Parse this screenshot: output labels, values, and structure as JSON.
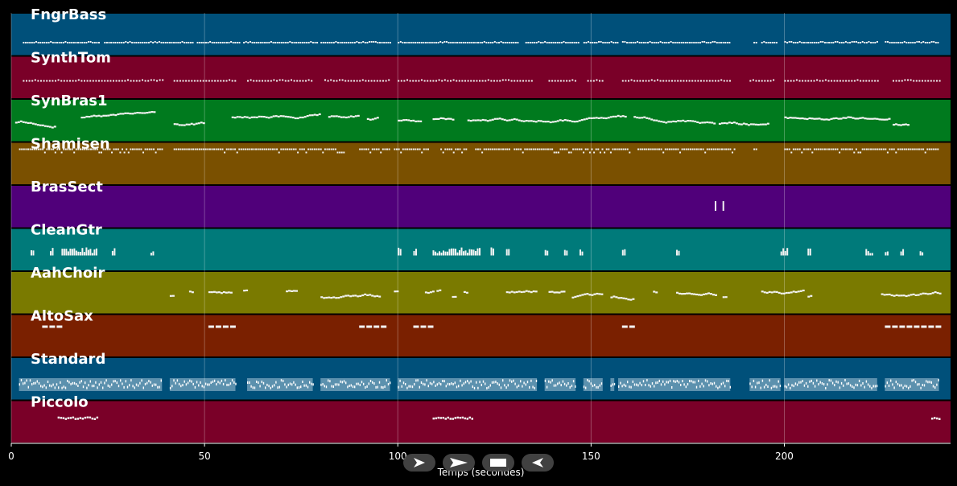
{
  "chart_data": {
    "type": "timeline",
    "xlabel": "Temps (secondes)",
    "xlim": [
      0,
      243
    ],
    "x_ticks": [
      0,
      50,
      100,
      150,
      200
    ],
    "grid": true,
    "tracks": [
      {
        "name": "FngrBass",
        "color": "#00507a",
        "pattern": "dense_line",
        "activity": [
          [
            3,
            23
          ],
          [
            24,
            47
          ],
          [
            48,
            59
          ],
          [
            60,
            79
          ],
          [
            80,
            98
          ],
          [
            100,
            131
          ],
          [
            133,
            147
          ],
          [
            148,
            157
          ],
          [
            158,
            186
          ],
          [
            192,
            193
          ],
          [
            194,
            198
          ],
          [
            200,
            224
          ],
          [
            226,
            240
          ]
        ]
      },
      {
        "name": "SynthTom",
        "color": "#7a0028",
        "pattern": "sparse_dots",
        "activity": [
          [
            3,
            39
          ],
          [
            42,
            58
          ],
          [
            61,
            78
          ],
          [
            81,
            98
          ],
          [
            100,
            135
          ],
          [
            139,
            146
          ],
          [
            149,
            153
          ],
          [
            158,
            186
          ],
          [
            191,
            197
          ],
          [
            200,
            224
          ],
          [
            228,
            240
          ]
        ]
      },
      {
        "name": "SynBras1",
        "color": "#007a1e",
        "pattern": "melody",
        "activity": [
          [
            1,
            11
          ],
          [
            18,
            37
          ],
          [
            42,
            50
          ],
          [
            57,
            80
          ],
          [
            82,
            90
          ],
          [
            92,
            95
          ],
          [
            100,
            106
          ],
          [
            109,
            114
          ],
          [
            118,
            159
          ],
          [
            161,
            182
          ],
          [
            183,
            196
          ],
          [
            200,
            227
          ],
          [
            228,
            232
          ]
        ]
      },
      {
        "name": "Shamisen",
        "color": "#7a5000",
        "pattern": "dense_dots",
        "activity": [
          [
            2,
            39
          ],
          [
            42,
            86
          ],
          [
            90,
            98
          ],
          [
            99,
            108
          ],
          [
            111,
            118
          ],
          [
            120,
            129
          ],
          [
            130,
            160
          ],
          [
            162,
            187
          ],
          [
            192,
            193
          ],
          [
            200,
            240
          ]
        ]
      },
      {
        "name": "BrasSect",
        "color": "#50007a",
        "pattern": "sparse_notes",
        "activity": [
          [
            182,
            183
          ],
          [
            184,
            185
          ]
        ]
      },
      {
        "name": "CleanGtr",
        "color": "#007a7a",
        "pattern": "chords",
        "activity": [
          [
            5,
            6
          ],
          [
            10,
            11
          ],
          [
            13,
            22
          ],
          [
            26,
            27
          ],
          [
            36,
            37
          ],
          [
            100,
            101
          ],
          [
            104,
            105
          ],
          [
            109,
            121
          ],
          [
            124,
            125
          ],
          [
            128,
            129
          ],
          [
            138,
            139
          ],
          [
            143,
            144
          ],
          [
            147,
            148
          ],
          [
            158,
            159
          ],
          [
            172,
            173
          ],
          [
            199,
            201
          ],
          [
            206,
            207
          ],
          [
            221,
            223
          ],
          [
            226,
            227
          ],
          [
            230,
            231
          ],
          [
            235,
            236
          ]
        ]
      },
      {
        "name": "AahChoir",
        "color": "#7a7a00",
        "pattern": "melody",
        "activity": [
          [
            41,
            42
          ],
          [
            46,
            47
          ],
          [
            51,
            57
          ],
          [
            60,
            61
          ],
          [
            71,
            74
          ],
          [
            80,
            95
          ],
          [
            99,
            100
          ],
          [
            107,
            109
          ],
          [
            110,
            111
          ],
          [
            114,
            115
          ],
          [
            117,
            118
          ],
          [
            128,
            136
          ],
          [
            139,
            143
          ],
          [
            145,
            153
          ],
          [
            155,
            161
          ],
          [
            166,
            167
          ],
          [
            172,
            182
          ],
          [
            184,
            185
          ],
          [
            194,
            205
          ],
          [
            206,
            207
          ],
          [
            225,
            240
          ]
        ]
      },
      {
        "name": "AltoSax",
        "color": "#7a2000",
        "pattern": "long_notes",
        "activity": [
          [
            8,
            12
          ],
          [
            51,
            58
          ],
          [
            90,
            97
          ],
          [
            104,
            109
          ],
          [
            158,
            160
          ],
          [
            226,
            240
          ]
        ]
      },
      {
        "name": "Standard",
        "color": "#00507a",
        "pattern": "drums",
        "activity": [
          [
            2,
            39
          ],
          [
            41,
            58
          ],
          [
            61,
            78
          ],
          [
            80,
            98
          ],
          [
            100,
            136
          ],
          [
            138,
            146
          ],
          [
            148,
            153
          ],
          [
            155,
            156
          ],
          [
            157,
            186
          ],
          [
            191,
            199
          ],
          [
            200,
            224
          ],
          [
            226,
            240
          ]
        ]
      },
      {
        "name": "Piccolo",
        "color": "#7a0028",
        "pattern": "short_run",
        "activity": [
          [
            12,
            22
          ],
          [
            109,
            119
          ],
          [
            238,
            240
          ]
        ]
      }
    ]
  },
  "controls": {
    "play": "play-icon",
    "fast_forward": "fast-forward-icon",
    "stop": "stop-icon",
    "rewind": "rewind-icon"
  }
}
